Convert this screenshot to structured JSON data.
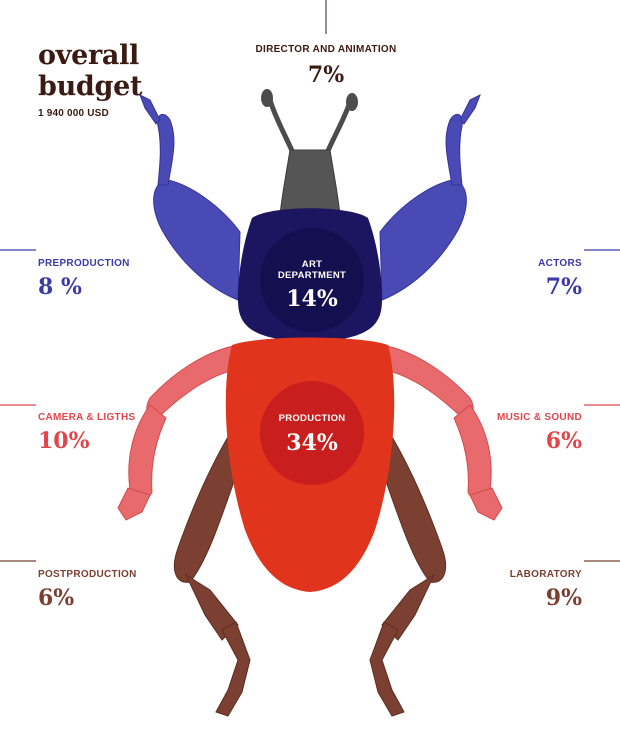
{
  "header": {
    "title_line1": "overall",
    "title_line2": "budget",
    "total": "1 940 000 USD"
  },
  "colors": {
    "title": "#3a1a12",
    "blue": "#3b3aa8",
    "navy": "#1c1560",
    "red": "#e0474c",
    "orange_red": "#e1341c",
    "crimson": "#c81e1e",
    "brown": "#7b4032",
    "gray": "#4c4c4c"
  },
  "chart_data": {
    "type": "pie",
    "total_label": "1 940 000 USD",
    "categories": [
      {
        "name": "DIRECTOR AND ANIMATION",
        "label": "7%",
        "value": 7
      },
      {
        "name": "PREPRODUCTION",
        "label": "8 %",
        "value": 8
      },
      {
        "name": "ACTORS",
        "label": "7%",
        "value": 7
      },
      {
        "name": "ART DEPARTMENT",
        "label": "14%",
        "value": 14
      },
      {
        "name": "CAMERA & LIGTHS",
        "label": "10%",
        "value": 10
      },
      {
        "name": "MUSIC & SOUND",
        "label": "6%",
        "value": 6
      },
      {
        "name": "PRODUCTION",
        "label": "34%",
        "value": 34
      },
      {
        "name": "POSTPRODUCTION",
        "label": "6%",
        "value": 6
      },
      {
        "name": "LABORATORY",
        "label": "9%",
        "value": 9
      }
    ],
    "labels": {
      "director": {
        "name": "DIRECTOR AND ANIMATION",
        "value": "7%"
      },
      "preproduction": {
        "name": "PREPRODUCTION",
        "value": "8 %"
      },
      "actors": {
        "name": "ACTORS",
        "value": "7%"
      },
      "art_line1": "ART",
      "art_line2": "DEPARTMENT",
      "art_value": "14%",
      "camera": {
        "name": "CAMERA & LIGTHS",
        "value": "10%"
      },
      "music": {
        "name": "MUSIC & SOUND",
        "value": "6%"
      },
      "production": {
        "name": "PRODUCTION",
        "value": "34%"
      },
      "postproduction": {
        "name": "POSTPRODUCTION",
        "value": "6%"
      },
      "laboratory": {
        "name": "LABORATORY",
        "value": "9%"
      }
    }
  }
}
